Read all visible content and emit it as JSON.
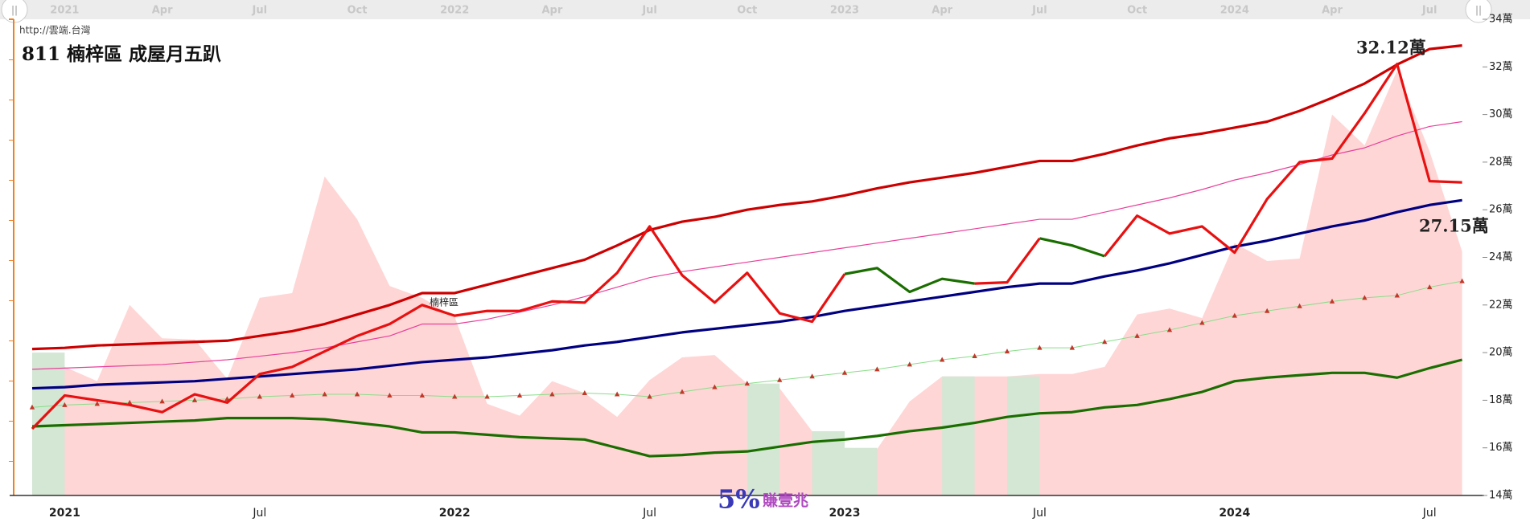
{
  "chart_data": {
    "type": "line",
    "title": "811 楠梓區 成屋月五趴",
    "source": "http://雲端.台灣",
    "annotations": [
      "32.12萬",
      "27.15萬"
    ],
    "logo": {
      "mark": "5%",
      "text": "賺壹兆"
    },
    "categories": [
      null,
      "2021",
      null,
      null,
      null,
      null,
      null,
      "Jul",
      null,
      null,
      null,
      null,
      null,
      "2022",
      null,
      null,
      null,
      null,
      null,
      "Jul",
      null,
      null,
      null,
      null,
      null,
      "2023",
      null,
      null,
      null,
      null,
      null,
      "Jul",
      null,
      null,
      null,
      null,
      null,
      "2024",
      null,
      null,
      null,
      null,
      null,
      "Jul",
      null
    ],
    "navigator_categories": [
      null,
      "2021",
      null,
      null,
      "Apr",
      null,
      null,
      "Jul",
      null,
      null,
      "Oct",
      null,
      null,
      "2022",
      null,
      null,
      "Apr",
      null,
      null,
      "Jul",
      null,
      null,
      "Oct",
      null,
      null,
      "2023",
      null,
      null,
      "Apr",
      null,
      null,
      "Jul",
      null,
      null,
      "Oct",
      null,
      null,
      "2024",
      null,
      null,
      "Apr",
      null,
      null,
      "Jul",
      null
    ],
    "ylim": [
      14,
      34
    ],
    "yticks": [
      {
        "value": 14,
        "label": "14萬"
      },
      {
        "value": 16,
        "label": "16萬"
      },
      {
        "value": 18,
        "label": "18萬"
      },
      {
        "value": 20,
        "label": "20萬"
      },
      {
        "value": 22,
        "label": "22萬"
      },
      {
        "value": 24,
        "label": "24萬"
      },
      {
        "value": 26,
        "label": "26萬"
      },
      {
        "value": 28,
        "label": "28萬"
      },
      {
        "value": 30,
        "label": "30萬"
      },
      {
        "value": 32,
        "label": "32萬"
      },
      {
        "value": 34,
        "label": "34萬"
      }
    ],
    "area": {
      "color": "#ffd6d6",
      "values": [
        20.0,
        19.4,
        18.8,
        22.0,
        20.6,
        20.55,
        18.9,
        22.3,
        22.5,
        27.4,
        25.6,
        22.8,
        22.3,
        21.5,
        17.85,
        17.35,
        18.8,
        18.3,
        17.3,
        18.85,
        19.8,
        19.9,
        18.7,
        18.5,
        16.7,
        16.0,
        15.95,
        17.95,
        19.0,
        19.0,
        19.0,
        19.1,
        19.1,
        19.4,
        21.6,
        21.85,
        21.45,
        24.6,
        23.85,
        23.95,
        30.0,
        28.7,
        31.85,
        28.45,
        24.25
      ],
      "colors": [
        "#d4e6d4",
        "#ffd6d6",
        "#ffd6d6",
        "#ffd6d6",
        "#ffd6d6",
        "#ffd6d6",
        "#ffd6d6",
        "#ffd6d6",
        "#ffd6d6",
        "#ffd6d6",
        "#ffd6d6",
        "#ffd6d6",
        "#ffd6d6",
        "#ffd6d6",
        "#ffd6d6",
        "#ffd6d6",
        "#ffd6d6",
        "#ffd6d6",
        "#ffd6d6",
        "#ffd6d6",
        "#ffd6d6",
        "#ffd6d6",
        "#d4e6d4",
        "#ffd6d6",
        "#d4e6d4",
        "#d4e6d4",
        "#ffd6d6",
        "#ffd6d6",
        "#d4e6d4",
        "#ffd6d6",
        "#d4e6d4",
        "#ffd6d6",
        "#ffd6d6",
        "#ffd6d6",
        "#ffd6d6",
        "#ffd6d6",
        "#ffd6d6",
        "#ffd6d6",
        "#ffd6d6",
        "#ffd6d6",
        "#ffd6d6",
        "#ffd6d6",
        "#ffd6d6",
        "#ffd6d6",
        "#ffd6d6"
      ]
    },
    "series": [
      {
        "name": "楠梓區",
        "color": "#e81010",
        "values": [
          16.8,
          18.2,
          18.0,
          17.8,
          17.5,
          18.25,
          17.9,
          19.1,
          19.4,
          20.05,
          20.7,
          21.2,
          22.0,
          21.55,
          21.75,
          21.75,
          22.15,
          22.1,
          23.35,
          25.3,
          23.25,
          22.1,
          23.35,
          21.65,
          21.3,
          23.3,
          23.55,
          22.55,
          23.1,
          22.9,
          22.95,
          24.8,
          24.5,
          24.05,
          25.75,
          25.0,
          25.3,
          24.2,
          26.45,
          28.0,
          28.15,
          30.05,
          32.12,
          27.2,
          27.15
        ],
        "point_colors": [
          "#e81010",
          "#e81010",
          "#e81010",
          "#e81010",
          "#e81010",
          "#e81010",
          "#e81010",
          "#e81010",
          "#e81010",
          "#e81010",
          "#e81010",
          "#e81010",
          "#e81010",
          "#e81010",
          "#e81010",
          "#e81010",
          "#e81010",
          "#e81010",
          "#e81010",
          "#e81010",
          "#e81010",
          "#e81010",
          "#e81010",
          "#e81010",
          "#e81010",
          "#1a6e00",
          "#1a6e00",
          "#1a6e00",
          "#1a6e00",
          "#1a6e00",
          "#e81010",
          "#1a6e00",
          "#1a6e00",
          "#1a6e00",
          "#e81010",
          "#e81010",
          "#e81010",
          "#e81010",
          "#e81010",
          "#e81010",
          "#e81010",
          "#e81010",
          "#e81010",
          "#e81010",
          "#e81010"
        ]
      },
      {
        "color": "#cc0000",
        "values": [
          20.15,
          20.2,
          20.3,
          20.35,
          20.4,
          20.45,
          20.5,
          20.7,
          20.9,
          21.2,
          21.6,
          22.0,
          22.5,
          22.5,
          22.85,
          23.2,
          23.55,
          23.9,
          24.5,
          25.15,
          25.5,
          25.7,
          26.0,
          26.2,
          26.35,
          26.6,
          26.9,
          27.15,
          27.35,
          27.55,
          27.8,
          28.05,
          28.05,
          28.35,
          28.7,
          29.0,
          29.2,
          29.45,
          29.7,
          30.15,
          30.7,
          31.3,
          32.1,
          32.75,
          32.9
        ]
      },
      {
        "color": "#e8409a",
        "values": [
          19.3,
          19.35,
          19.4,
          19.45,
          19.5,
          19.6,
          19.7,
          19.85,
          20.0,
          20.2,
          20.45,
          20.7,
          21.2,
          21.2,
          21.4,
          21.7,
          22.0,
          22.35,
          22.75,
          23.15,
          23.4,
          23.6,
          23.8,
          24.0,
          24.2,
          24.4,
          24.6,
          24.8,
          25.0,
          25.2,
          25.4,
          25.6,
          25.6,
          25.9,
          26.2,
          26.5,
          26.85,
          27.25,
          27.55,
          27.9,
          28.3,
          28.6,
          29.1,
          29.5,
          29.7
        ]
      },
      {
        "color": "#000080",
        "values": [
          18.5,
          18.55,
          18.65,
          18.7,
          18.75,
          18.8,
          18.9,
          19.0,
          19.1,
          19.2,
          19.3,
          19.45,
          19.6,
          19.7,
          19.8,
          19.95,
          20.1,
          20.3,
          20.45,
          20.65,
          20.85,
          21.0,
          21.15,
          21.3,
          21.5,
          21.75,
          21.95,
          22.15,
          22.35,
          22.55,
          22.75,
          22.9,
          22.9,
          23.2,
          23.45,
          23.75,
          24.1,
          24.45,
          24.7,
          25.0,
          25.3,
          25.55,
          25.9,
          26.2,
          26.4
        ]
      },
      {
        "color": "#88dd88",
        "marker": "triangle",
        "marker_color": "#c0392b",
        "values": [
          17.7,
          17.8,
          17.85,
          17.9,
          17.95,
          18.0,
          18.05,
          18.15,
          18.2,
          18.25,
          18.25,
          18.2,
          18.2,
          18.15,
          18.15,
          18.2,
          18.25,
          18.3,
          18.25,
          18.15,
          18.35,
          18.55,
          18.7,
          18.85,
          19.0,
          19.15,
          19.3,
          19.5,
          19.7,
          19.85,
          20.05,
          20.2,
          20.2,
          20.45,
          20.7,
          20.95,
          21.25,
          21.55,
          21.75,
          21.95,
          22.15,
          22.3,
          22.4,
          22.75,
          23.0
        ]
      },
      {
        "color": "#1a6e00",
        "values": [
          16.9,
          16.95,
          17.0,
          17.05,
          17.1,
          17.15,
          17.25,
          17.25,
          17.25,
          17.2,
          17.05,
          16.9,
          16.65,
          16.65,
          16.55,
          16.45,
          16.4,
          16.35,
          16.0,
          15.65,
          15.7,
          15.8,
          15.85,
          16.05,
          16.25,
          16.35,
          16.5,
          16.7,
          16.85,
          17.05,
          17.3,
          17.45,
          17.5,
          17.7,
          17.8,
          18.05,
          18.35,
          18.8,
          18.95,
          19.05,
          19.15,
          19.15,
          18.95,
          19.35,
          19.7
        ]
      }
    ]
  }
}
